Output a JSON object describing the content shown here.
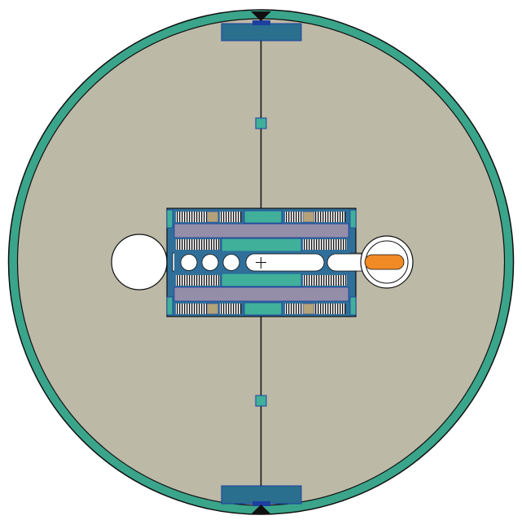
{
  "colors": {
    "background": "#ffffff",
    "outer_ring": "#3aa58a",
    "interior": "#bcb9a7",
    "outline": "#101010",
    "steel_blue": "#1f6f98",
    "block_blue": "#2f6f9a",
    "teal_band": "#40b09a",
    "lavender_band": "#948ea8",
    "sand": "#b3a27a",
    "channel_white": "#ffffff",
    "fuel_orange": "#f08a24",
    "border_blue": "#1c3fa0"
  },
  "icons": {
    "center_marker": "crosshair-icon",
    "top_marker": "triangle-marker-icon",
    "bottom_marker": "triangle-marker-icon"
  }
}
